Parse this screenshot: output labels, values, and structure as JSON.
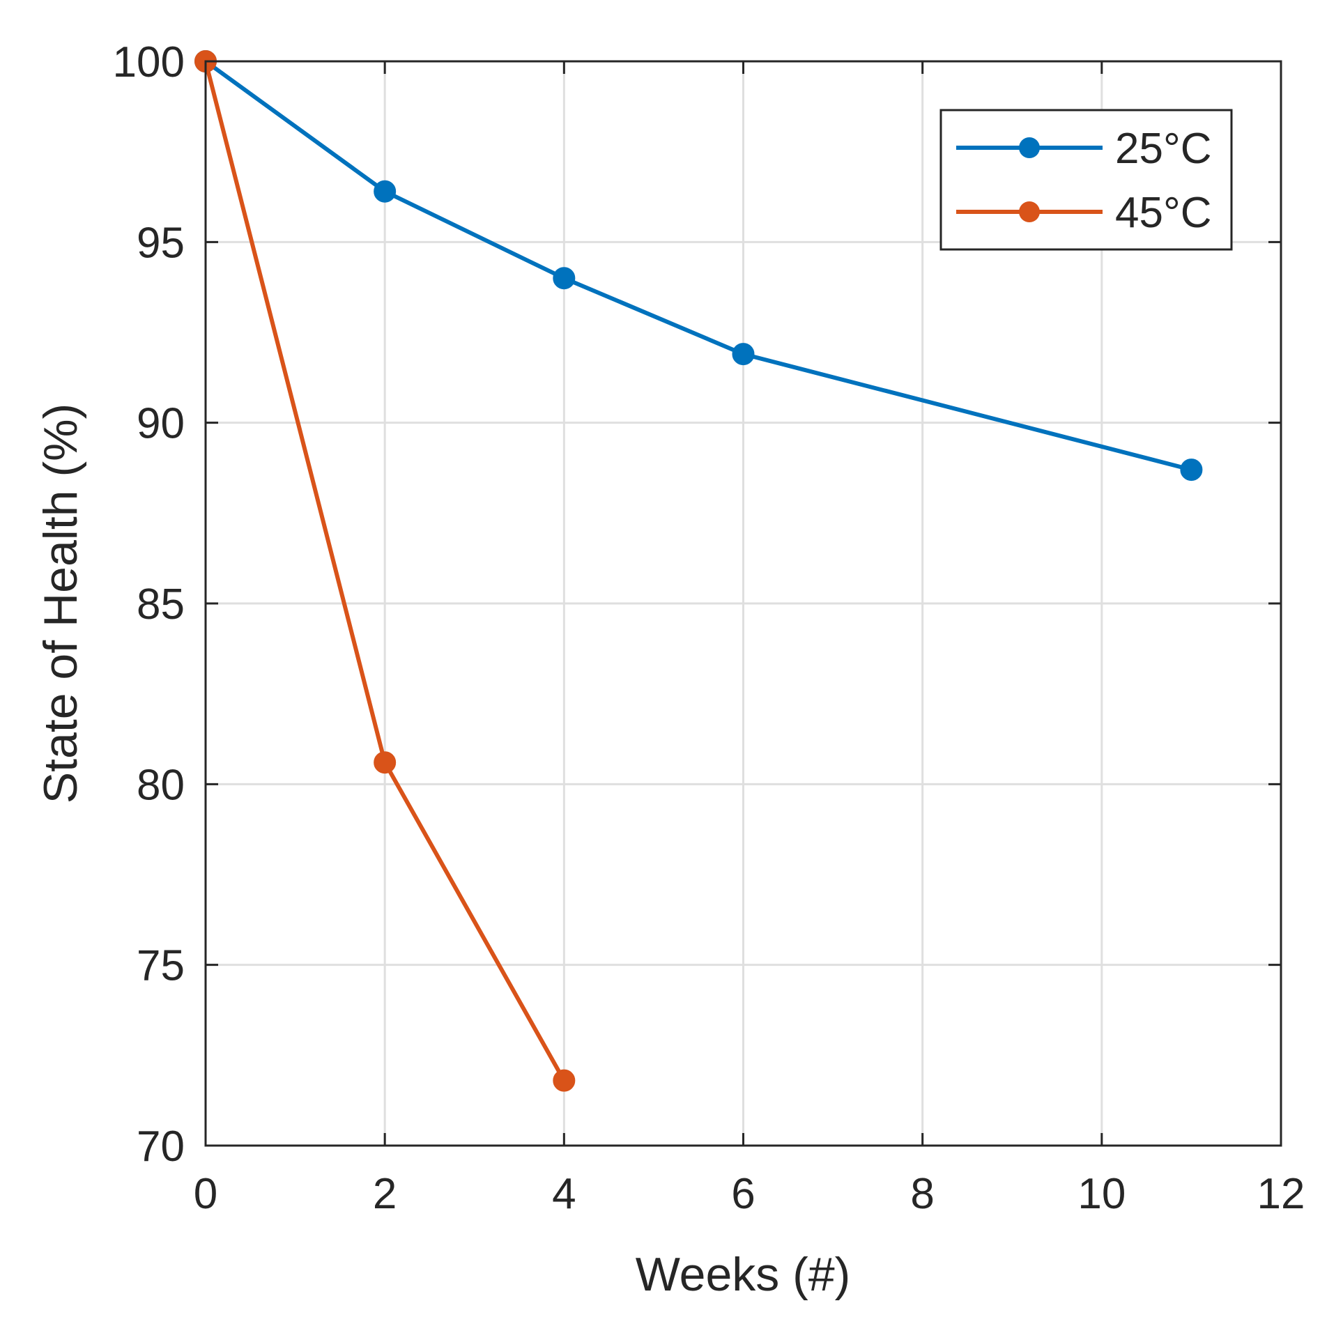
{
  "chart_data": {
    "type": "line",
    "title": "",
    "xlabel": "Weeks (#)",
    "ylabel": "State of Health (%)",
    "xlim": [
      0,
      12
    ],
    "ylim": [
      70,
      100
    ],
    "xticks": [
      "0",
      "2",
      "4",
      "6",
      "8",
      "10",
      "12"
    ],
    "yticks": [
      "70",
      "75",
      "80",
      "85",
      "90",
      "95",
      "100"
    ],
    "grid": true,
    "legend_position": "top-right",
    "series": [
      {
        "name": "25°C",
        "color": "#0072BD",
        "x": [
          0,
          2,
          4,
          6,
          11
        ],
        "y": [
          100,
          96.4,
          94.0,
          91.9,
          88.7
        ]
      },
      {
        "name": "45°C",
        "color": "#D95319",
        "x": [
          0,
          2,
          4
        ],
        "y": [
          100,
          80.6,
          71.8
        ]
      }
    ]
  }
}
